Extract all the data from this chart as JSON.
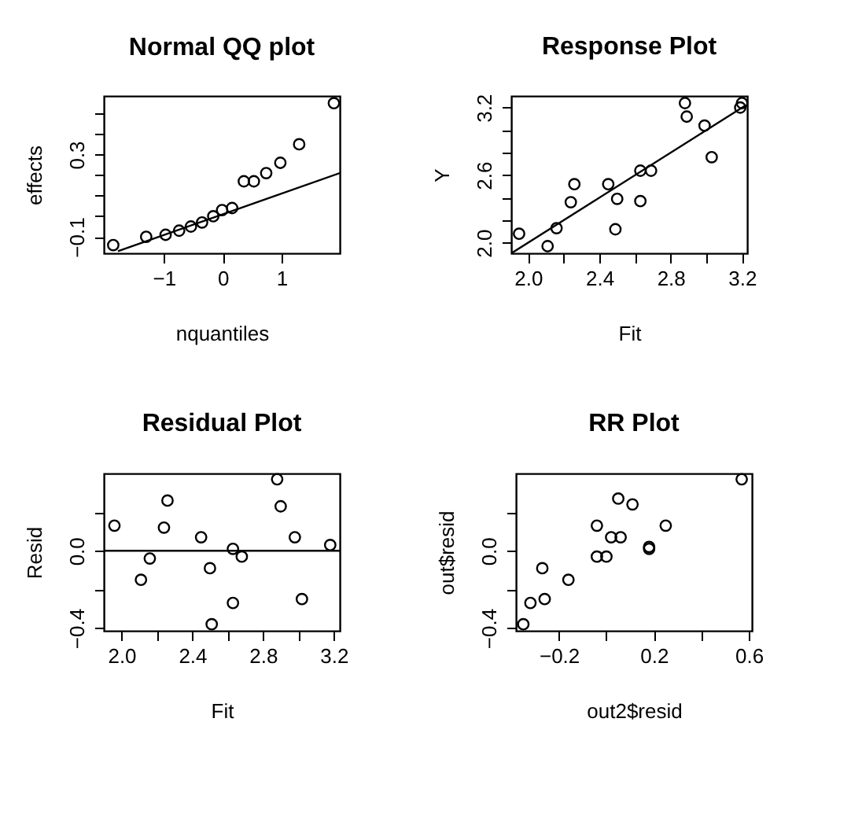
{
  "chart_data": [
    {
      "type": "scatter",
      "title": "Normal QQ plot",
      "xlabel": "nquantiles",
      "ylabel": "effects",
      "grid": false,
      "xlim": [
        -2.02,
        1.99
      ],
      "ylim": [
        -0.18,
        0.585
      ],
      "xticks": [
        -1,
        0,
        1
      ],
      "yticks": [
        -0.1,
        {
          "value": 0,
          "label": null
        },
        {
          "value": 0.1,
          "label": null
        },
        {
          "value": 0.2,
          "label": null
        },
        0.3,
        {
          "value": 0.4,
          "label": null
        },
        {
          "value": 0.5,
          "label": null
        }
      ],
      "series": [
        {
          "type": "scatter",
          "marker": "circle",
          "color": "#000000",
          "x": [
            -1.86,
            -1.3,
            -0.97,
            -0.74,
            -0.54,
            -0.35,
            -0.16,
            -0.01,
            0.16,
            0.36,
            0.53,
            0.74,
            0.98,
            1.3,
            1.89
          ],
          "values": [
            -0.14,
            -0.1,
            -0.09,
            -0.07,
            -0.05,
            -0.03,
            0,
            0.03,
            0.04,
            0.17,
            0.17,
            0.21,
            0.26,
            0.35,
            0.55
          ]
        },
        {
          "type": "line",
          "marker": "none",
          "color": "#000000",
          "x": [
            -1.78,
            1.99
          ],
          "values": [
            -0.17,
            0.21
          ]
        }
      ]
    },
    {
      "type": "scatter",
      "title": "Response Plot",
      "xlabel": "Fit",
      "ylabel": "Y",
      "grid": false,
      "xlim": [
        1.906,
        3.229
      ],
      "ylim": [
        1.907,
        3.303
      ],
      "xticks": [
        {
          "value": 2,
          "label": "2.0"
        },
        {
          "value": 2.2,
          "label": null
        },
        2.4,
        {
          "value": 2.6,
          "label": null
        },
        2.8,
        {
          "value": 3,
          "label": null
        },
        3.2
      ],
      "yticks": [
        {
          "value": 2,
          "label": "2.0"
        },
        {
          "value": 2.2,
          "label": null
        },
        {
          "value": 2.4,
          "label": null
        },
        2.6,
        {
          "value": 2.8,
          "label": null
        },
        {
          "value": 3,
          "label": null
        },
        3.2
      ],
      "series": [
        {
          "type": "scatter",
          "marker": "circle",
          "color": "#000000",
          "x": [
            1.95,
            2.11,
            2.16,
            2.24,
            2.26,
            2.45,
            2.5,
            2.49,
            2.63,
            2.63,
            2.69,
            2.88,
            2.89,
            2.99,
            3.03,
            3.19,
            3.2
          ],
          "values": [
            2.08,
            1.97,
            2.13,
            2.36,
            2.52,
            2.52,
            2.39,
            2.12,
            2.37,
            2.64,
            2.64,
            3.24,
            3.12,
            3.04,
            2.76,
            3.2,
            3.24
          ]
        },
        {
          "type": "line",
          "marker": "none",
          "color": "#000000",
          "x": [
            1.91,
            3.22
          ],
          "values": [
            1.91,
            3.22
          ]
        }
      ]
    },
    {
      "type": "scatter",
      "title": "Residual Plot",
      "xlabel": "Fit",
      "ylabel": "Resid",
      "grid": false,
      "xlim": [
        1.9,
        3.234
      ],
      "ylim": [
        -0.414,
        0.4
      ],
      "xticks": [
        {
          "value": 2,
          "label": "2.0"
        },
        {
          "value": 2.2,
          "label": null
        },
        2.4,
        {
          "value": 2.6,
          "label": null
        },
        2.8,
        {
          "value": 3,
          "label": null
        },
        3.2
      ],
      "yticks": [
        -0.4,
        {
          "value": -0.2,
          "label": null
        },
        {
          "value": 0,
          "label": "0.0"
        },
        {
          "value": 0.2,
          "label": null
        }
      ],
      "ref_lines": [
        {
          "axis": "y",
          "value": 0,
          "color": "#000000"
        }
      ],
      "series": [
        {
          "type": "scatter",
          "marker": "circle",
          "color": "#000000",
          "x": [
            1.96,
            2.11,
            2.16,
            2.24,
            2.26,
            2.45,
            2.5,
            2.51,
            2.63,
            2.63,
            2.68,
            2.88,
            2.9,
            2.98,
            3.02,
            3.18
          ],
          "values": [
            0.13,
            -0.15,
            -0.04,
            0.12,
            0.26,
            0.07,
            -0.09,
            -0.38,
            0.01,
            -0.27,
            -0.03,
            0.37,
            0.23,
            0.07,
            -0.25,
            0.03
          ]
        }
      ]
    },
    {
      "type": "scatter",
      "title": "RR Plot",
      "xlabel": "out2$resid",
      "ylabel": "out$resid",
      "grid": false,
      "xlim": [
        -0.381,
        0.613
      ],
      "ylim": [
        -0.414,
        0.4
      ],
      "xticks": [
        -0.2,
        {
          "value": 0,
          "label": null
        },
        0.2,
        {
          "value": 0.4,
          "label": null
        },
        0.6
      ],
      "yticks": [
        -0.4,
        {
          "value": -0.2,
          "label": null
        },
        {
          "value": 0,
          "label": "0.0"
        },
        {
          "value": 0.2,
          "label": null
        }
      ],
      "series": [
        {
          "type": "scatter",
          "marker": "circle",
          "color": "#000000",
          "x": [
            -0.35,
            -0.32,
            -0.26,
            -0.27,
            -0.16,
            -0.04,
            0,
            -0.04,
            0.02,
            0.06,
            0.05,
            0.11,
            0.18,
            0.18,
            0.25,
            0.57
          ],
          "values": [
            -0.38,
            -0.27,
            -0.25,
            -0.09,
            -0.15,
            -0.03,
            -0.03,
            0.13,
            0.07,
            0.07,
            0.27,
            0.24,
            0.02,
            0.01,
            0.13,
            0.37
          ]
        }
      ]
    }
  ]
}
